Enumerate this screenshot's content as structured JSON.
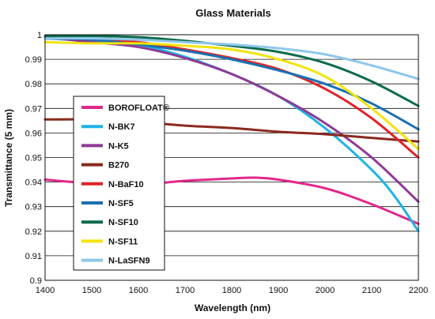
{
  "chart_data": {
    "type": "line",
    "title": "Glass Materials",
    "xlabel": "Wavelength (nm)",
    "ylabel": "Transmittance (5 mm)",
    "xlim": [
      1400,
      2200
    ],
    "ylim": [
      0.9,
      1.0
    ],
    "x_ticks": [
      1400,
      1500,
      1600,
      1700,
      1800,
      1900,
      2000,
      2100,
      2200
    ],
    "y_ticks": [
      0.9,
      0.91,
      0.92,
      0.93,
      0.94,
      0.95,
      0.96,
      0.97,
      0.98,
      0.99,
      1
    ],
    "y_tick_labels": [
      "0.9",
      "0.91",
      "0.92",
      "0.93",
      "0.94",
      "0.95",
      "0.96",
      "0.97",
      "0.98",
      "0.99",
      "1"
    ],
    "grid": "horizontal",
    "legend_position": "left-center",
    "series": [
      {
        "name": "BOROFLOAT®",
        "color": "#e0288a",
        "x": [
          1400,
          1500,
          1600,
          1700,
          1800,
          1850,
          1900,
          2000,
          2100,
          2200
        ],
        "y": [
          0.941,
          0.9395,
          0.939,
          0.9405,
          0.9415,
          0.9418,
          0.941,
          0.9375,
          0.931,
          0.923
        ]
      },
      {
        "name": "N-BK7",
        "color": "#1fb3e6",
        "x": [
          1400,
          1500,
          1600,
          1700,
          1800,
          1900,
          2000,
          2100,
          2150,
          2200
        ],
        "y": [
          0.9985,
          0.9975,
          0.996,
          0.991,
          0.984,
          0.975,
          0.962,
          0.945,
          0.934,
          0.92
        ]
      },
      {
        "name": "N-K5",
        "color": "#8e3a96",
        "x": [
          1400,
          1500,
          1600,
          1700,
          1800,
          1900,
          2000,
          2100,
          2200
        ],
        "y": [
          0.999,
          0.997,
          0.995,
          0.9905,
          0.984,
          0.975,
          0.964,
          0.95,
          0.932
        ]
      },
      {
        "name": "B270",
        "color": "#8a2a20",
        "x": [
          1400,
          1500,
          1600,
          1700,
          1800,
          1900,
          2000,
          2100,
          2200
        ],
        "y": [
          0.9655,
          0.9655,
          0.9645,
          0.963,
          0.962,
          0.9605,
          0.9595,
          0.958,
          0.9565
        ]
      },
      {
        "name": "N-BaF10",
        "color": "#e02328",
        "x": [
          1400,
          1500,
          1600,
          1700,
          1800,
          1900,
          2000,
          2100,
          2200
        ],
        "y": [
          0.9985,
          0.998,
          0.997,
          0.994,
          0.9905,
          0.986,
          0.978,
          0.966,
          0.95
        ]
      },
      {
        "name": "N-SF5",
        "color": "#1a6fb0",
        "x": [
          1400,
          1500,
          1600,
          1700,
          1800,
          1900,
          2000,
          2100,
          2200
        ],
        "y": [
          0.9985,
          0.998,
          0.996,
          0.9935,
          0.99,
          0.9855,
          0.98,
          0.972,
          0.9615
        ]
      },
      {
        "name": "N-SF10",
        "color": "#0c6b4a",
        "x": [
          1400,
          1500,
          1600,
          1700,
          1800,
          1900,
          2000,
          2100,
          2200
        ],
        "y": [
          0.9995,
          0.9995,
          0.999,
          0.9975,
          0.9955,
          0.993,
          0.9885,
          0.981,
          0.971
        ]
      },
      {
        "name": "N-SF11",
        "color": "#f2e40c",
        "x": [
          1400,
          1500,
          1600,
          1700,
          1800,
          1900,
          2000,
          2100,
          2200
        ],
        "y": [
          0.997,
          0.9965,
          0.9965,
          0.9955,
          0.994,
          0.99,
          0.983,
          0.97,
          0.9535
        ]
      },
      {
        "name": "N-LaSFN9",
        "color": "#8ec6ea",
        "x": [
          1400,
          1500,
          1600,
          1700,
          1800,
          1900,
          2000,
          2100,
          2200
        ],
        "y": [
          0.9985,
          0.9985,
          0.998,
          0.997,
          0.996,
          0.9945,
          0.992,
          0.9875,
          0.982
        ]
      }
    ]
  }
}
